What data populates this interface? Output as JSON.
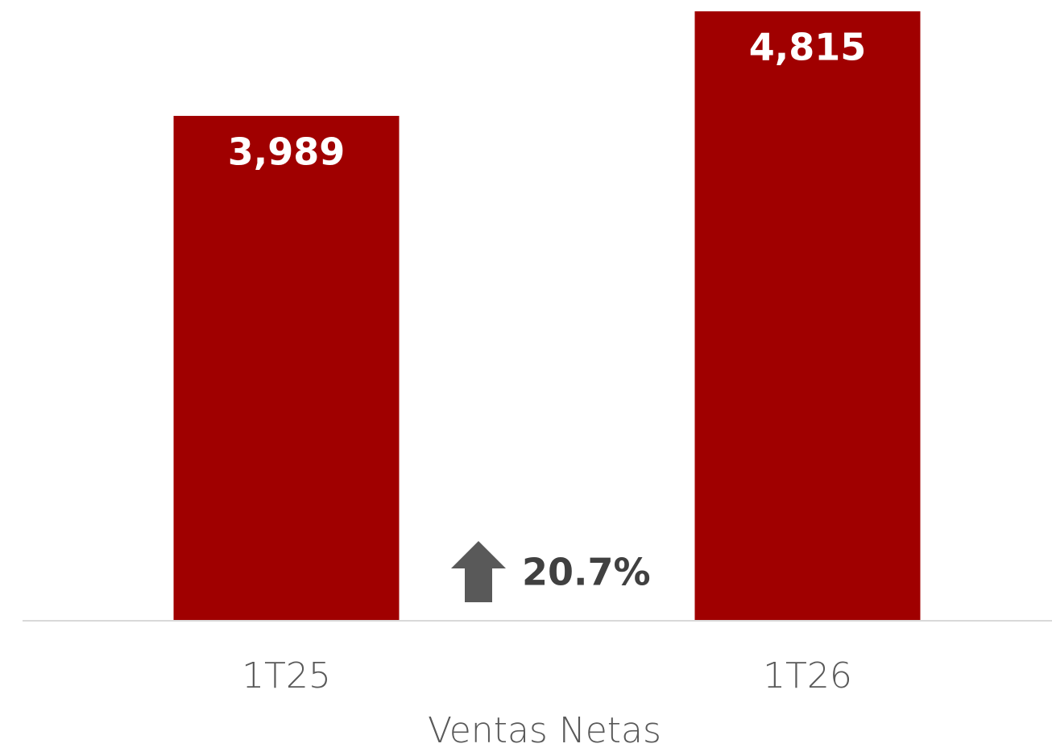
{
  "chart_data": {
    "type": "bar",
    "x_label": "Ventas Netas",
    "categories": [
      "1T25",
      "1T26"
    ],
    "values": [
      3989,
      4815
    ],
    "value_labels": [
      "3,989",
      "4,815"
    ],
    "color": "#a00000",
    "ylim": [
      0,
      5000
    ],
    "annotation": "20.7%"
  }
}
